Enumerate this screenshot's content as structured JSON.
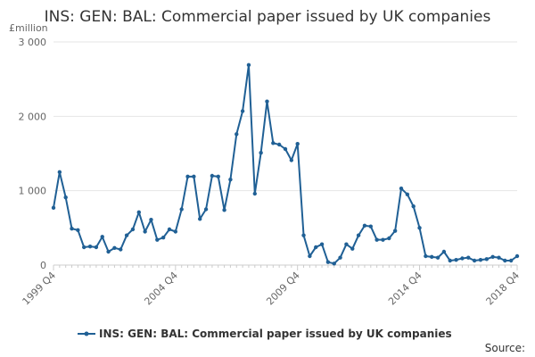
{
  "chart_data": {
    "type": "line",
    "title": "INS: GEN: BAL: Commercial paper issued by UK companies",
    "ylabel": "£million",
    "xlabel": "",
    "ylim": [
      0,
      3000
    ],
    "yticks": [
      0,
      1000,
      2000,
      3000
    ],
    "ytick_labels": [
      "0",
      "1 000",
      "2 000",
      "3 000"
    ],
    "xticks": [
      "1999 Q4",
      "2004 Q4",
      "2009 Q4",
      "2014 Q4",
      "2018 Q4"
    ],
    "grid": true,
    "legend": "bottom",
    "source_label": "Source:",
    "x": [
      "1999 Q4",
      "2000 Q1",
      "2000 Q2",
      "2000 Q3",
      "2000 Q4",
      "2001 Q1",
      "2001 Q2",
      "2001 Q3",
      "2001 Q4",
      "2002 Q1",
      "2002 Q2",
      "2002 Q3",
      "2002 Q4",
      "2003 Q1",
      "2003 Q2",
      "2003 Q3",
      "2003 Q4",
      "2004 Q1",
      "2004 Q2",
      "2004 Q3",
      "2004 Q4",
      "2005 Q1",
      "2005 Q2",
      "2005 Q3",
      "2005 Q4",
      "2006 Q1",
      "2006 Q2",
      "2006 Q3",
      "2006 Q4",
      "2007 Q1",
      "2007 Q2",
      "2007 Q3",
      "2007 Q4",
      "2008 Q1",
      "2008 Q2",
      "2008 Q3",
      "2008 Q4",
      "2009 Q1",
      "2009 Q2",
      "2009 Q3",
      "2009 Q4",
      "2010 Q1",
      "2010 Q2",
      "2010 Q3",
      "2010 Q4",
      "2011 Q1",
      "2011 Q2",
      "2011 Q3",
      "2011 Q4",
      "2012 Q1",
      "2012 Q2",
      "2012 Q3",
      "2012 Q4",
      "2013 Q1",
      "2013 Q2",
      "2013 Q3",
      "2013 Q4",
      "2014 Q1",
      "2014 Q2",
      "2014 Q3",
      "2014 Q4",
      "2015 Q1",
      "2015 Q2",
      "2015 Q3",
      "2015 Q4",
      "2016 Q1",
      "2016 Q2",
      "2016 Q3",
      "2016 Q4",
      "2017 Q1",
      "2017 Q2",
      "2017 Q3",
      "2017 Q4",
      "2018 Q1",
      "2018 Q2",
      "2018 Q3",
      "2018 Q4"
    ],
    "series": [
      {
        "name": "INS: GEN: BAL: Commercial paper issued by UK companies",
        "color": "#206095",
        "values": [
          770,
          1250,
          910,
          490,
          470,
          240,
          250,
          240,
          380,
          180,
          230,
          210,
          400,
          480,
          710,
          450,
          610,
          340,
          370,
          480,
          450,
          750,
          1190,
          1190,
          620,
          750,
          1200,
          1190,
          740,
          1150,
          1760,
          2070,
          2690,
          960,
          1510,
          2200,
          1640,
          1620,
          1560,
          1410,
          1630,
          400,
          120,
          240,
          280,
          40,
          20,
          100,
          280,
          220,
          400,
          530,
          520,
          340,
          340,
          360,
          460,
          1030,
          950,
          790,
          500,
          120,
          110,
          100,
          180,
          60,
          70,
          90,
          100,
          60,
          70,
          80,
          110,
          100,
          60,
          60,
          120
        ]
      }
    ]
  }
}
